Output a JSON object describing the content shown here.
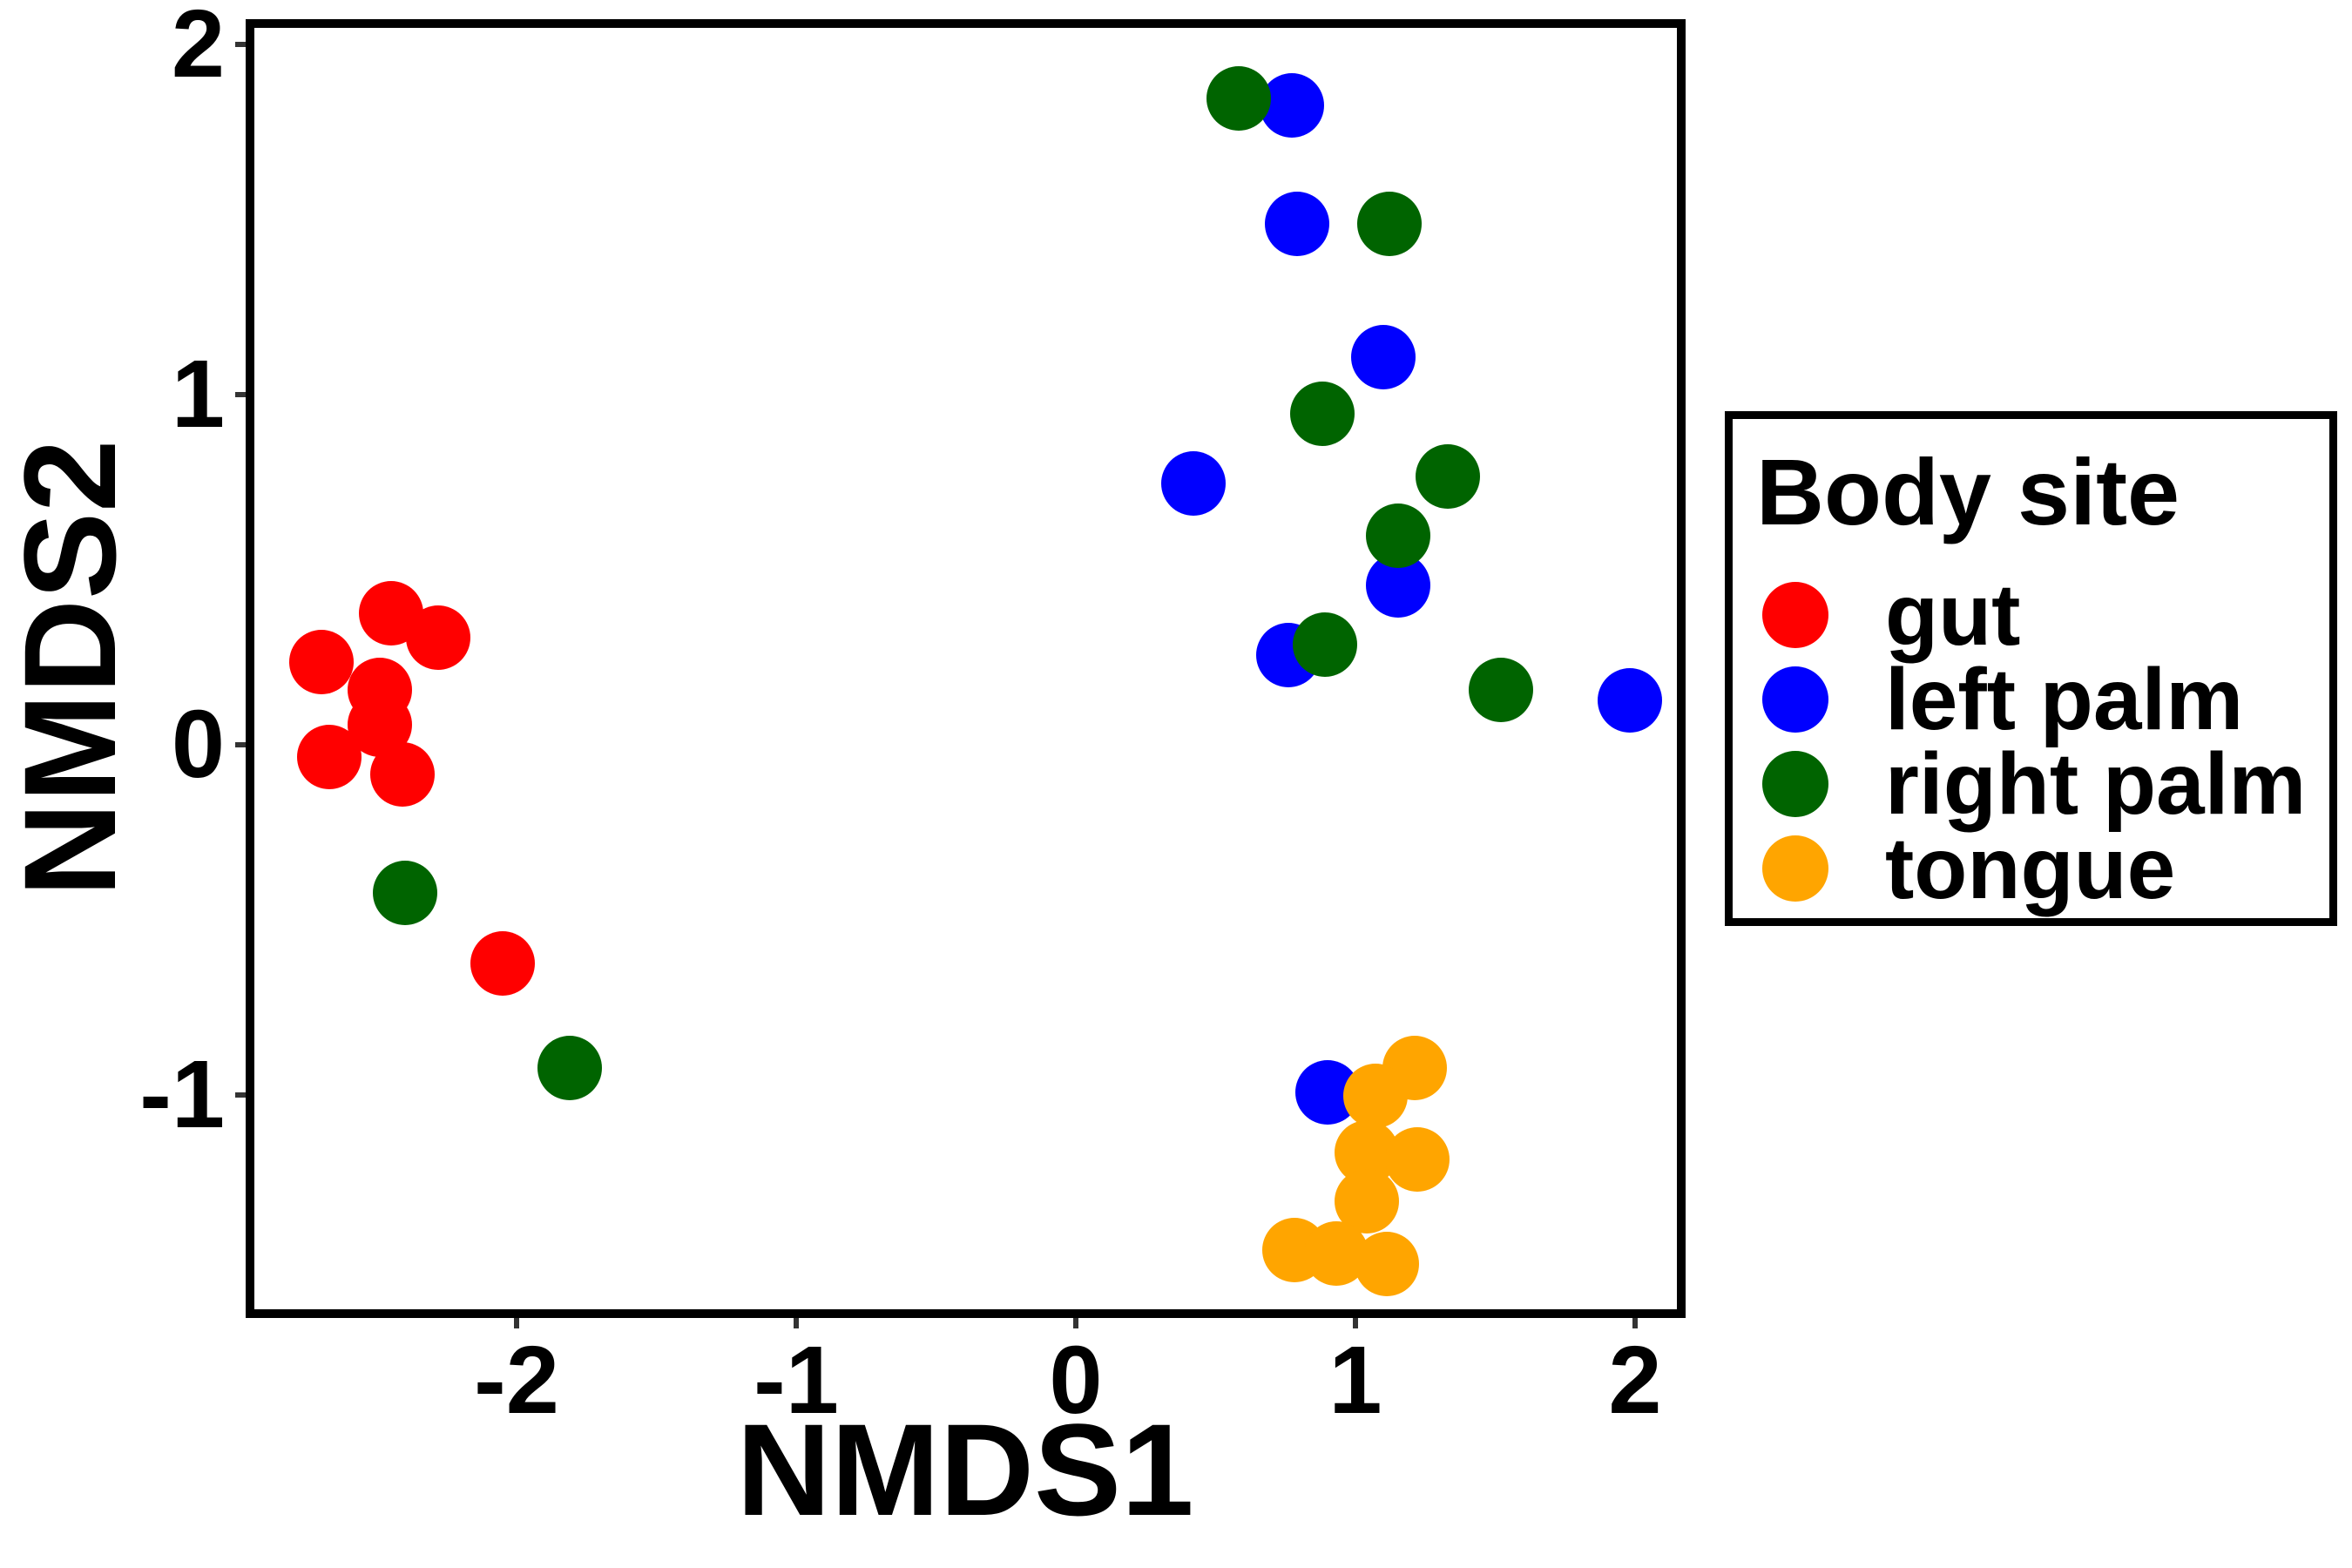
{
  "chart_data": {
    "type": "scatter",
    "title": "",
    "xlabel": "NMDS1",
    "ylabel": "NMDS2",
    "xlim": [
      -2.95,
      2.15
    ],
    "ylim": [
      -1.62,
      2.05
    ],
    "grid": false,
    "x_ticks": [
      -2,
      -1,
      0,
      1,
      2
    ],
    "x_tick_labels": [
      "-2",
      "-1",
      "0",
      "1",
      "2"
    ],
    "y_ticks": [
      -1,
      0,
      1,
      2
    ],
    "y_tick_labels": [
      "-1",
      "0",
      "1",
      "2"
    ],
    "legend_title": "Body site",
    "legend_position": "right",
    "point_color_names": {
      "gut": "red",
      "left palm": "blue",
      "right palm": "darkgreen",
      "tongue": "orange"
    },
    "series": [
      {
        "name": "gut",
        "color": "#FF0000",
        "points": [
          [
            -2.48,
            0.4
          ],
          [
            -2.31,
            0.33
          ],
          [
            -2.73,
            0.26
          ],
          [
            -2.52,
            0.18
          ],
          [
            -2.52,
            0.08
          ],
          [
            -2.7,
            -0.01
          ],
          [
            -2.44,
            -0.06
          ],
          [
            -2.08,
            -0.6
          ]
        ]
      },
      {
        "name": "left palm",
        "color": "#0000FF",
        "points": [
          [
            0.74,
            1.85
          ],
          [
            0.76,
            1.51
          ],
          [
            1.07,
            1.13
          ],
          [
            0.39,
            0.77
          ],
          [
            1.12,
            0.48
          ],
          [
            0.73,
            0.28
          ],
          [
            1.95,
            0.15
          ],
          [
            0.87,
            -0.97
          ]
        ]
      },
      {
        "name": "right palm",
        "color": "#006400",
        "points": [
          [
            0.55,
            1.87
          ],
          [
            1.09,
            1.51
          ],
          [
            0.85,
            0.97
          ],
          [
            1.3,
            0.79
          ],
          [
            1.12,
            0.62
          ],
          [
            0.86,
            0.31
          ],
          [
            1.49,
            0.18
          ],
          [
            -2.43,
            -0.4
          ],
          [
            -1.84,
            -0.9
          ]
        ]
      },
      {
        "name": "tongue",
        "color": "#FFA500",
        "points": [
          [
            1.18,
            -0.9
          ],
          [
            1.04,
            -0.98
          ],
          [
            1.01,
            -1.14
          ],
          [
            1.19,
            -1.16
          ],
          [
            1.01,
            -1.28
          ],
          [
            0.75,
            -1.42
          ],
          [
            0.9,
            -1.43
          ],
          [
            1.08,
            -1.46
          ]
        ]
      }
    ]
  }
}
